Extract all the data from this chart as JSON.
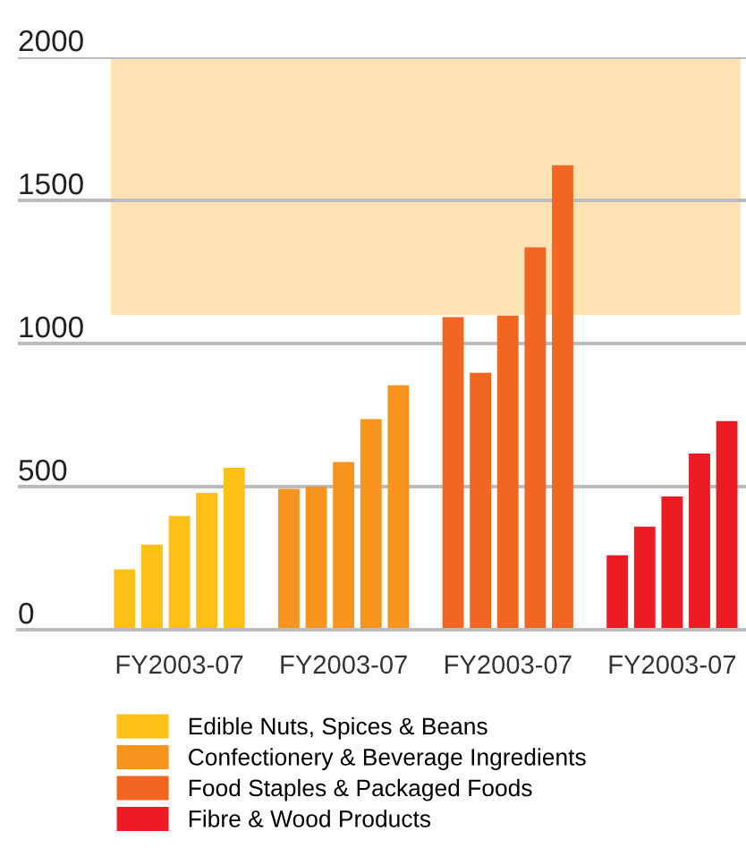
{
  "chart_data": {
    "type": "bar",
    "categories": [
      null,
      null,
      "FY2003-07",
      null,
      null,
      null,
      null,
      null,
      "FY2003-07",
      null,
      null,
      null,
      null,
      null,
      "FY2003-07",
      null,
      null,
      null,
      null,
      null,
      "FY2003-07",
      null,
      null
    ],
    "series": [
      {
        "name": "Edible Nuts, Spices & Beans",
        "color": "#fcc016",
        "values": [
          211,
          298,
          398,
          478,
          566,
          null,
          null,
          null,
          null,
          null,
          null,
          null,
          null,
          null,
          null,
          null,
          null,
          null,
          null,
          null,
          null,
          null,
          null
        ]
      },
      {
        "name": "Confectionery & Beverage Ingredients",
        "color": "#f7941d",
        "values": [
          null,
          null,
          null,
          null,
          null,
          null,
          492,
          500,
          586,
          736,
          854,
          null,
          null,
          null,
          null,
          null,
          null,
          null,
          null,
          null,
          null,
          null,
          null
        ]
      },
      {
        "name": "Food Staples & Packaged Foods",
        "color": "#f26522",
        "values": [
          null,
          null,
          null,
          null,
          null,
          null,
          null,
          null,
          null,
          null,
          null,
          null,
          1092,
          898,
          1098,
          1336,
          1623,
          null,
          null,
          null,
          null,
          null,
          null
        ]
      },
      {
        "name": "Fibre & Wood Products",
        "color": "#ed1c24",
        "values": [
          null,
          null,
          null,
          null,
          null,
          null,
          null,
          null,
          null,
          null,
          null,
          null,
          null,
          null,
          null,
          null,
          null,
          null,
          260,
          360,
          466,
          616,
          729
        ]
      }
    ],
    "ylim": [
      0,
      2000
    ],
    "yticks": [
      0,
      500,
      1000,
      1500,
      2000
    ],
    "bands": [
      {
        "axis": "y",
        "from": 1100,
        "to": 2000,
        "color": "#fde3b4"
      }
    ],
    "grid": "y",
    "legend": "bottom"
  }
}
